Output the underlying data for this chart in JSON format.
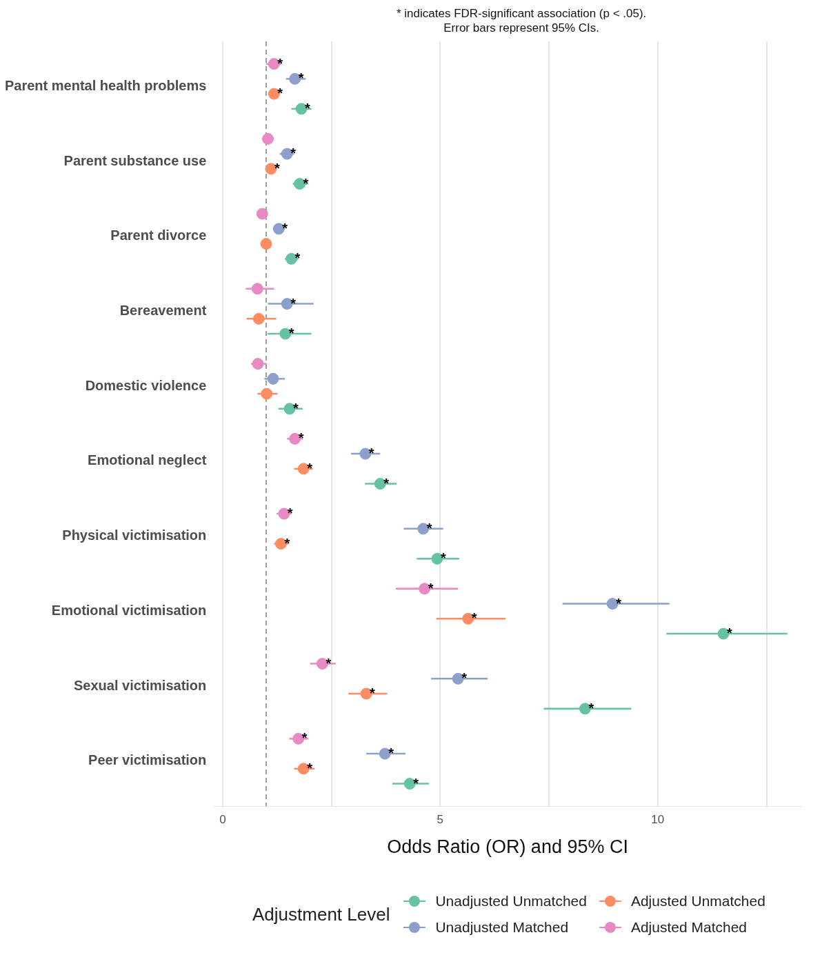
{
  "chart_data": {
    "type": "scatter",
    "orientation": "horizontal",
    "annotations": [
      "* indicates FDR-significant association (p < .05).",
      "Error bars represent 95% CIs."
    ],
    "xlabel": "Odds Ratio (OR) and 95% CI",
    "legend_title": "Adjustment Level",
    "legend": "bottom",
    "grid": "x",
    "marker": "circle",
    "categories": [
      "Parent mental health problems",
      "Parent substance use",
      "Parent divorce",
      "Bereavement",
      "Domestic violence",
      "Emotional neglect",
      "Physical victimisation",
      "Emotional victimisation",
      "Sexual victimisation",
      "Peer victimisation"
    ],
    "xlim": [
      -0.2,
      13.3
    ],
    "xticks": [
      0,
      {
        "value": 2.5,
        "label": null
      },
      5,
      {
        "value": 7.5,
        "label": null
      },
      10,
      {
        "value": 12.5,
        "label": null
      }
    ],
    "ref_lines": [
      {
        "axis": "x",
        "value": 1,
        "line_style": "dashed",
        "color": "#7f7f7f"
      }
    ],
    "series": [
      {
        "name": "Unadjusted Unmatched",
        "color": "#66c2a5",
        "values": [
          1.81,
          1.77,
          1.58,
          1.44,
          1.54,
          3.62,
          4.93,
          11.51,
          8.33,
          4.3
        ],
        "errors": [
          [
            1.58,
            2.04
          ],
          [
            1.61,
            1.96
          ],
          [
            1.43,
            1.74
          ],
          [
            1.03,
            2.04
          ],
          [
            1.28,
            1.84
          ],
          [
            3.27,
            4.0
          ],
          [
            4.46,
            5.44
          ],
          [
            10.2,
            12.98
          ],
          [
            7.38,
            9.39
          ],
          [
            3.9,
            4.74
          ]
        ],
        "value_labels": [
          "*",
          "*",
          "*",
          "*",
          "*",
          "*",
          "*",
          "*",
          "*",
          "*"
        ]
      },
      {
        "name": "Adjusted Unmatched",
        "color": "#fc8d62",
        "values": [
          1.18,
          1.11,
          1.0,
          0.83,
          1.01,
          1.86,
          1.34,
          5.64,
          3.3,
          1.86
        ],
        "errors": [
          [
            1.04,
            1.31
          ],
          [
            1.0,
            1.23
          ],
          [
            0.88,
            1.11
          ],
          [
            0.55,
            1.23
          ],
          [
            0.8,
            1.26
          ],
          [
            1.64,
            2.07
          ],
          [
            1.18,
            1.51
          ],
          [
            4.91,
            6.5
          ],
          [
            2.89,
            3.78
          ],
          [
            1.64,
            2.11
          ]
        ],
        "value_labels": [
          "*",
          "*",
          null,
          null,
          null,
          "*",
          "*",
          "*",
          "*",
          "*"
        ]
      },
      {
        "name": "Unadjusted Matched",
        "color": "#8da0cb",
        "values": [
          1.66,
          1.48,
          1.29,
          1.48,
          1.16,
          3.28,
          4.61,
          8.96,
          5.41,
          3.73
        ],
        "errors": [
          [
            1.46,
            1.91
          ],
          [
            1.31,
            1.64
          ],
          [
            1.16,
            1.43
          ],
          [
            1.04,
            2.09
          ],
          [
            0.96,
            1.43
          ],
          [
            2.95,
            3.62
          ],
          [
            4.16,
            5.07
          ],
          [
            7.81,
            10.27
          ],
          [
            4.79,
            6.09
          ],
          [
            3.3,
            4.2
          ]
        ],
        "value_labels": [
          "*",
          "*",
          "*",
          "*",
          null,
          "*",
          "*",
          "*",
          "*",
          "*"
        ]
      },
      {
        "name": "Adjusted Matched",
        "color": "#e78ac3",
        "values": [
          1.18,
          1.04,
          0.91,
          0.8,
          0.81,
          1.66,
          1.41,
          4.64,
          2.29,
          1.74
        ],
        "errors": [
          [
            1.0,
            1.35
          ],
          [
            0.95,
            1.16
          ],
          [
            0.8,
            1.03
          ],
          [
            0.53,
            1.18
          ],
          [
            0.65,
            1.01
          ],
          [
            1.48,
            1.84
          ],
          [
            1.24,
            1.58
          ],
          [
            3.98,
            5.41
          ],
          [
            2.01,
            2.6
          ],
          [
            1.53,
            1.97
          ]
        ],
        "value_labels": [
          "*",
          null,
          null,
          null,
          null,
          "*",
          "*",
          "*",
          "*",
          "*"
        ]
      }
    ]
  }
}
